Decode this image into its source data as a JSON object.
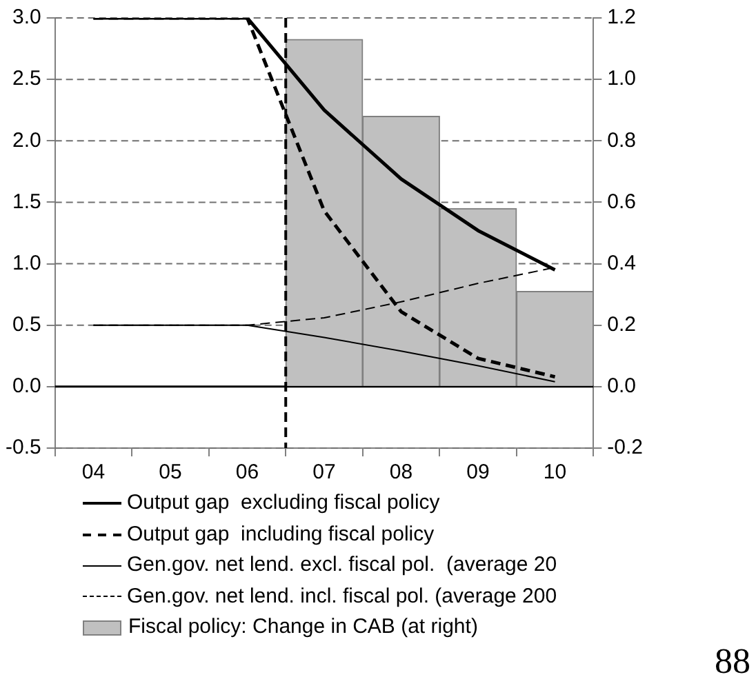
{
  "chart_data": {
    "type": "line",
    "categories": [
      "04",
      "05",
      "06",
      "07",
      "08",
      "09",
      "10"
    ],
    "series": [
      {
        "name": "Output gap  excluding fiscal policy",
        "color": "#000000",
        "line_style": "solid",
        "values": [
          3.0,
          3.0,
          3.0,
          2.25,
          1.69,
          1.27,
          0.95
        ]
      },
      {
        "name": "Output gap  including fiscal policy",
        "color": "#000000",
        "line_style": "dashed",
        "values": [
          3.0,
          3.0,
          3.0,
          1.43,
          0.61,
          0.23,
          0.08
        ]
      },
      {
        "name": "Gen.gov. net lend. excl. fiscal pol.  (average 20",
        "color": "#000000",
        "line_style": "solid",
        "values": [
          0.5,
          0.5,
          0.5,
          0.4,
          0.29,
          0.17,
          0.04
        ]
      },
      {
        "name": "Gen.gov. net lend. incl. fiscal pol. (average 200",
        "color": "#000000",
        "line_style": "dashed",
        "values": [
          0.5,
          0.5,
          0.5,
          0.56,
          0.69,
          0.84,
          0.97
        ]
      },
      {
        "name": "Fiscal policy: Change in CAB (at right)",
        "type": "bar",
        "axis": "y2",
        "color": "#c0c0c0",
        "values": [
          null,
          null,
          null,
          1.13,
          0.88,
          0.58,
          0.31
        ]
      }
    ],
    "ylim": [
      -0.5,
      3.0
    ],
    "yticks": [
      {
        "value": -0.5,
        "label": "-0.5"
      },
      {
        "value": 0,
        "label": "0.0"
      },
      0.5,
      {
        "value": 1,
        "label": "1.0"
      },
      1.5,
      {
        "value": 2,
        "label": "2.0"
      },
      2.5,
      {
        "value": 3,
        "label": "3.0"
      }
    ],
    "y2lim": [
      -0.2,
      1.2
    ],
    "y2ticks": [
      -0.2,
      {
        "value": 0,
        "label": "0.0"
      },
      0.2,
      0.4,
      0.6,
      0.8,
      {
        "value": 1,
        "label": "1.0"
      },
      1.2
    ],
    "ref_lines": [
      {
        "axis": "x",
        "value": "07",
        "color": "#000000",
        "line_style": "dashed"
      }
    ],
    "grid": "y",
    "legend": "bottom",
    "marker": "none",
    "annotations": [
      "88"
    ]
  }
}
